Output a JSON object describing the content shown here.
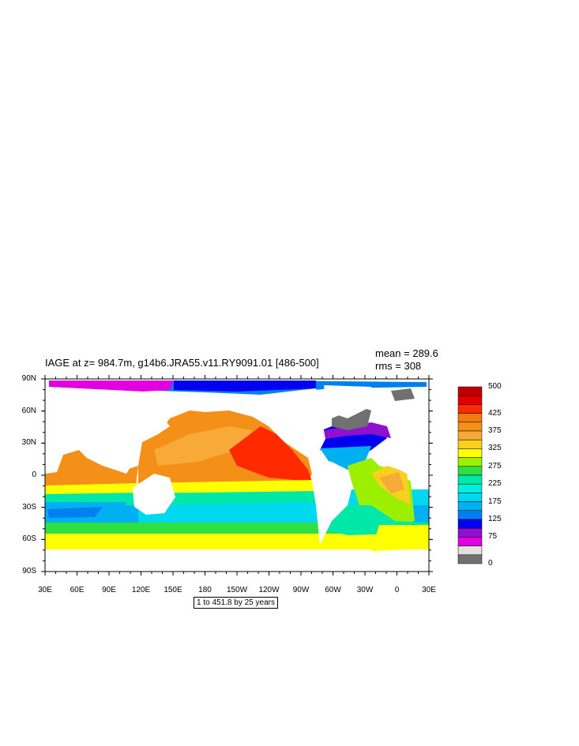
{
  "title": "IAGE at z= 984.7m, g14b6.JRA55.v11.RY9091.01 [486-500]",
  "stats": {
    "mean": "mean = 289.6",
    "rms": "rms = 308"
  },
  "footnote": "1 to 451.8 by 25 years",
  "axes": {
    "lon_labels": [
      "30E",
      "60E",
      "90E",
      "120E",
      "150E",
      "180",
      "150W",
      "120W",
      "90W",
      "60W",
      "30W",
      "0",
      "30E"
    ],
    "lat_labels": [
      "90N",
      "60N",
      "30N",
      "0",
      "30S",
      "60S",
      "90S"
    ]
  },
  "colorbar": {
    "labels": [
      "500",
      "425",
      "375",
      "325",
      "275",
      "225",
      "175",
      "125",
      "75",
      "0"
    ],
    "colors": [
      "#c00000",
      "#e00000",
      "#ff2a00",
      "#f07a10",
      "#f49018",
      "#f8aa38",
      "#f8d020",
      "#ffff00",
      "#9af000",
      "#30e040",
      "#00e8a8",
      "#00f0e0",
      "#00d8f0",
      "#00b0f0",
      "#0080f0",
      "#0000f0",
      "#9010d0",
      "#e000e0",
      "#e0e0e0",
      "#707070"
    ]
  },
  "colors": {
    "land": "#ffffff",
    "frame": "#000000"
  }
}
